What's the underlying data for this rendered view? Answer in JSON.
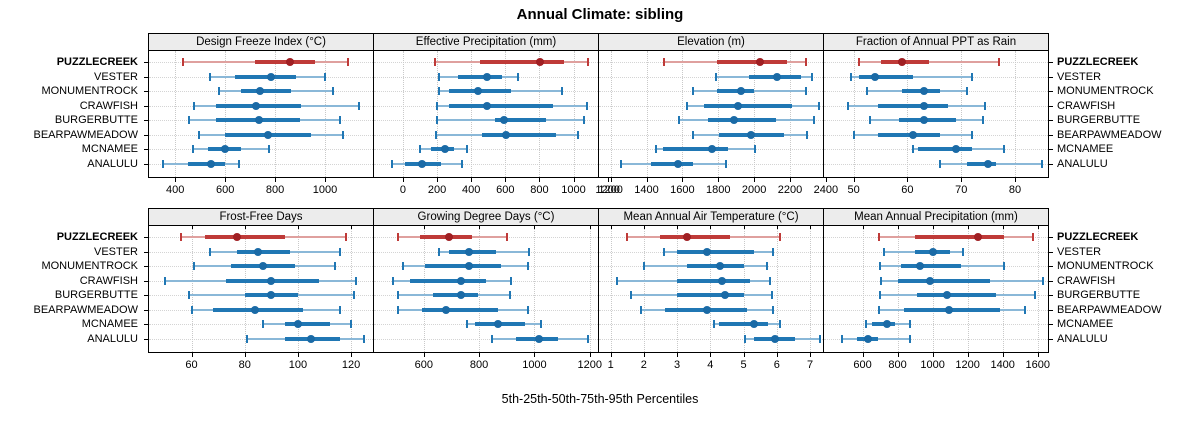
{
  "title": "Annual Climate: sibling",
  "caption": "5th-25th-50th-75th-95th Percentiles",
  "colors": {
    "blue_main": "#2077b4",
    "blue_light": "#8ab8d8",
    "blue_dot": "#1a6aa6",
    "red_main": "#bf3a38",
    "red_light": "#dfa09e",
    "red_dot": "#a01f23",
    "strip_bg": "#ececec",
    "grid": "#cccccc"
  },
  "chart_data": {
    "type": "interval-dotplot",
    "percentiles": [
      "5th",
      "25th",
      "50th",
      "75th",
      "95th"
    ],
    "legend_note": "rows show 5th-25th-50th-75th-95th percentile intervals; PUZZLECREEK highlighted red",
    "rows": [
      "PUZZLECREEK",
      "VESTER",
      "MONUMENTROCK",
      "CRAWFISH",
      "BURGERBUTTE",
      "BEARPAWMEADOW",
      "MCNAMEE",
      "ANALULU"
    ],
    "highlight_row": "PUZZLECREEK",
    "panels": [
      {
        "title": "Design Freeze Index (°C)",
        "ticks": [
          400,
          600,
          800,
          1000
        ],
        "xlim": [
          295,
          1200
        ],
        "grid_row": 0,
        "series": [
          [
            430,
            720,
            860,
            960,
            1090
          ],
          [
            540,
            640,
            785,
            885,
            1000
          ],
          [
            575,
            665,
            740,
            865,
            1030
          ],
          [
            475,
            565,
            725,
            905,
            1135
          ],
          [
            455,
            565,
            735,
            900,
            1060
          ],
          [
            495,
            600,
            770,
            945,
            1070
          ],
          [
            470,
            530,
            600,
            665,
            775
          ],
          [
            350,
            450,
            545,
            600,
            655
          ]
        ]
      },
      {
        "title": "Effective Precipitation (mm)",
        "ticks": [
          0,
          200,
          400,
          600,
          800,
          1000,
          1200
        ],
        "xlim": [
          -170,
          1155
        ],
        "grid_row": 0,
        "series": [
          [
            185,
            450,
            805,
            945,
            1085
          ],
          [
            210,
            320,
            495,
            580,
            675
          ],
          [
            210,
            270,
            440,
            635,
            930
          ],
          [
            200,
            270,
            490,
            880,
            1080
          ],
          [
            200,
            540,
            590,
            840,
            1060
          ],
          [
            195,
            465,
            605,
            900,
            1025
          ],
          [
            100,
            165,
            245,
            300,
            375
          ],
          [
            -65,
            10,
            110,
            220,
            345
          ]
        ]
      },
      {
        "title": "Elevation (m)",
        "ticks": [
          1200,
          1400,
          1600,
          1800,
          2000,
          2200,
          2400
        ],
        "xlim": [
          1135,
          2395
        ],
        "grid_row": 0,
        "series": [
          [
            1495,
            1795,
            2030,
            2185,
            2290
          ],
          [
            1785,
            1970,
            2130,
            2260,
            2320
          ],
          [
            1660,
            1795,
            1925,
            2000,
            2290
          ],
          [
            1625,
            1720,
            1910,
            2210,
            2360
          ],
          [
            1580,
            1740,
            1885,
            2120,
            2335
          ],
          [
            1660,
            1805,
            1980,
            2165,
            2295
          ],
          [
            1455,
            1490,
            1765,
            1855,
            2005
          ],
          [
            1260,
            1425,
            1575,
            1660,
            1845
          ]
        ]
      },
      {
        "title": "Fraction of Annual PPT as Rain",
        "ticks": [
          50,
          60,
          70,
          80
        ],
        "xlim": [
          44.5,
          86.5
        ],
        "grid_row": 0,
        "series": [
          [
            51,
            55,
            59,
            64,
            77
          ],
          [
            49.5,
            51,
            54,
            61,
            72
          ],
          [
            52.5,
            59,
            63,
            66,
            71
          ],
          [
            49,
            54.5,
            63,
            67.5,
            74.5
          ],
          [
            53,
            58.5,
            63,
            69,
            74
          ],
          [
            50,
            54.5,
            61,
            66,
            72
          ],
          [
            61,
            62,
            69,
            72,
            78
          ],
          [
            66,
            71,
            75,
            76.5,
            85
          ]
        ]
      },
      {
        "title": "Frost-Free Days",
        "ticks": [
          60,
          80,
          100,
          120
        ],
        "xlim": [
          44,
          129
        ],
        "grid_row": 1,
        "series": [
          [
            56,
            65,
            77,
            95,
            118
          ],
          [
            67,
            77,
            85,
            97,
            116
          ],
          [
            61,
            75,
            87,
            99,
            114
          ],
          [
            50,
            73,
            90,
            108,
            122
          ],
          [
            59,
            80,
            90,
            100,
            121
          ],
          [
            60,
            68,
            84,
            102,
            116
          ],
          [
            87,
            95,
            100,
            112,
            120
          ],
          [
            81,
            95,
            105,
            116,
            125
          ]
        ]
      },
      {
        "title": "Growing Degree Days (°C)",
        "ticks": [
          600,
          800,
          1000,
          1200
        ],
        "xlim": [
          420,
          1237
        ],
        "grid_row": 1,
        "series": [
          [
            505,
            585,
            690,
            775,
            900
          ],
          [
            655,
            690,
            765,
            860,
            980
          ],
          [
            525,
            605,
            765,
            880,
            975
          ],
          [
            490,
            550,
            735,
            825,
            915
          ],
          [
            505,
            635,
            735,
            795,
            910
          ],
          [
            505,
            595,
            680,
            870,
            975
          ],
          [
            755,
            785,
            870,
            965,
            1025
          ],
          [
            845,
            935,
            1015,
            1085,
            1195
          ]
        ]
      },
      {
        "title": "Mean Annual Air Temperature (°C)",
        "ticks": [
          1,
          2,
          3,
          4,
          5,
          6,
          7
        ],
        "xlim": [
          0.65,
          7.45
        ],
        "grid_row": 1,
        "series": [
          [
            1.5,
            2.5,
            3.3,
            4.6,
            6.1
          ],
          [
            2.6,
            3.0,
            3.9,
            5.3,
            5.9
          ],
          [
            2.0,
            3.3,
            4.3,
            5.0,
            5.7
          ],
          [
            1.2,
            3.0,
            4.35,
            5.2,
            5.8
          ],
          [
            1.6,
            3.0,
            4.45,
            5.0,
            5.85
          ],
          [
            1.9,
            2.65,
            3.9,
            5.1,
            5.9
          ],
          [
            4.1,
            4.25,
            5.3,
            5.75,
            6.1
          ],
          [
            5.05,
            5.3,
            5.95,
            6.55,
            7.3
          ]
        ]
      },
      {
        "title": "Mean Annual Precipitation (mm)",
        "ticks": [
          600,
          800,
          1000,
          1200,
          1400,
          1600
        ],
        "xlim": [
          380,
          1670
        ],
        "grid_row": 1,
        "series": [
          [
            695,
            900,
            1260,
            1405,
            1575
          ],
          [
            725,
            900,
            1005,
            1100,
            1175
          ],
          [
            700,
            820,
            930,
            1160,
            1410
          ],
          [
            705,
            805,
            985,
            1330,
            1630
          ],
          [
            700,
            910,
            1080,
            1360,
            1585
          ],
          [
            695,
            835,
            1095,
            1385,
            1525
          ],
          [
            620,
            655,
            740,
            785,
            870
          ],
          [
            485,
            570,
            630,
            690,
            870
          ]
        ]
      }
    ]
  }
}
